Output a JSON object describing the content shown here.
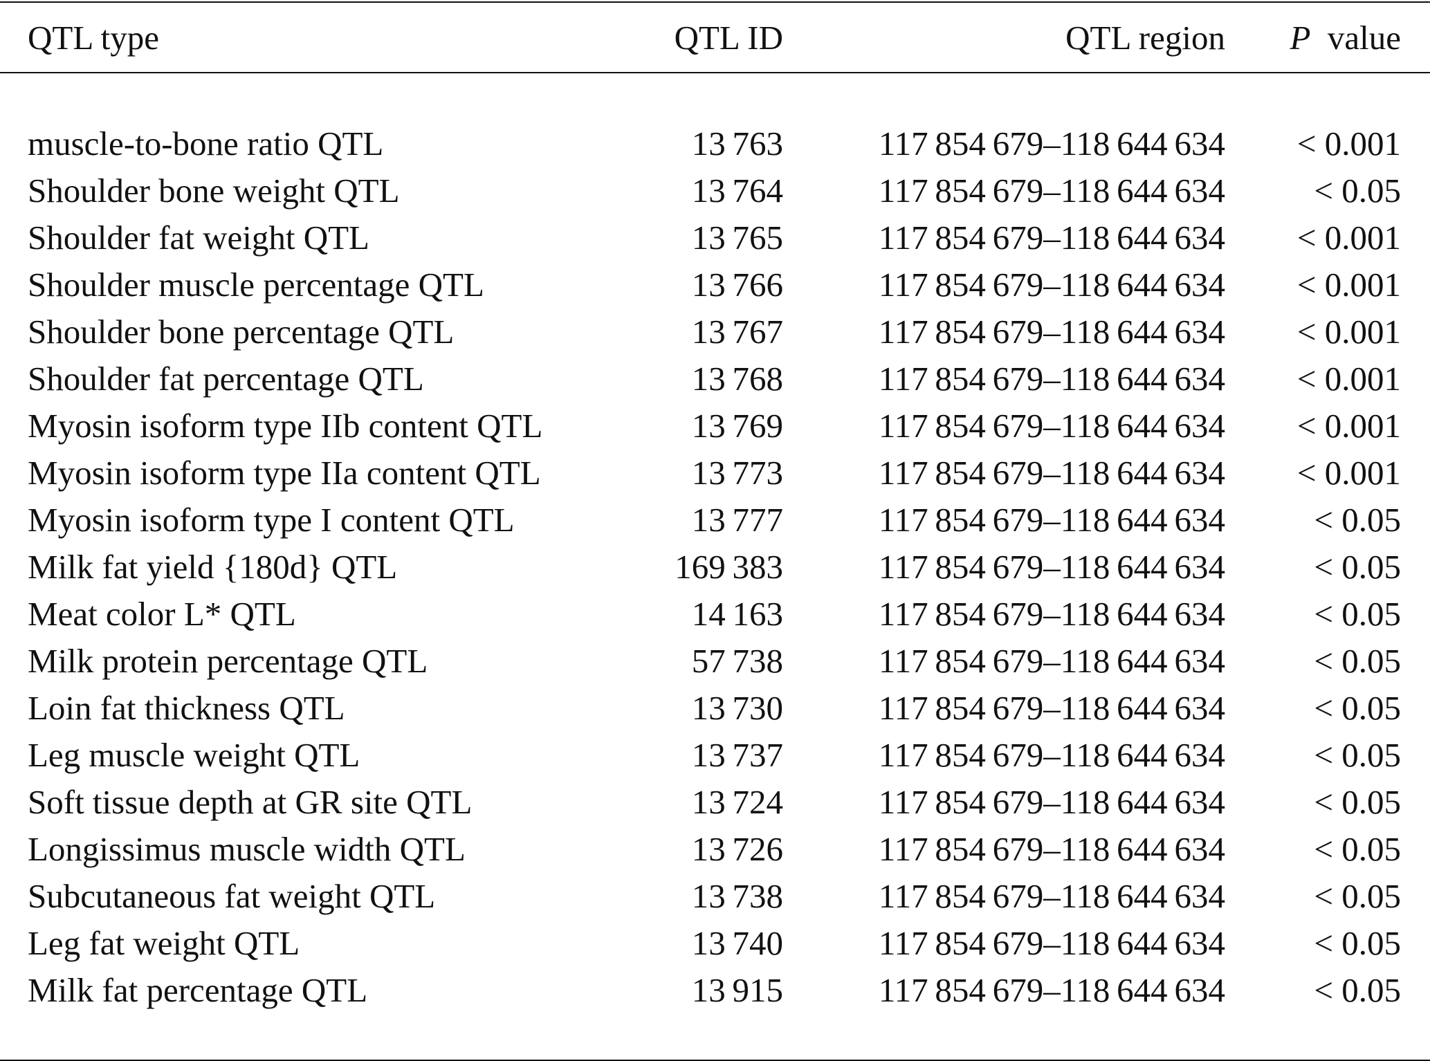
{
  "table": {
    "header": [
      "QTL type",
      "QTL ID",
      "QTL region",
      [
        "P",
        "value"
      ]
    ],
    "rows": [
      [
        "muscle-to-bone ratio QTL",
        "13 763",
        "117 854 679–118 644 634",
        "< 0.001"
      ],
      [
        "Shoulder bone weight QTL",
        "13 764",
        "117 854 679–118 644 634",
        "< 0.05"
      ],
      [
        "Shoulder fat weight QTL",
        "13 765",
        "117 854 679–118 644 634",
        "< 0.001"
      ],
      [
        "Shoulder muscle percentage QTL",
        "13 766",
        "117 854 679–118 644 634",
        "< 0.001"
      ],
      [
        "Shoulder bone percentage QTL",
        "13 767",
        "117 854 679–118 644 634",
        "< 0.001"
      ],
      [
        "Shoulder fat percentage QTL",
        "13 768",
        "117 854 679–118 644 634",
        "< 0.001"
      ],
      [
        "Myosin isoform type IIb content QTL",
        "13 769",
        "117 854 679–118 644 634",
        "< 0.001"
      ],
      [
        "Myosin isoform type IIa content QTL",
        "13 773",
        "117 854 679–118 644 634",
        "< 0.001"
      ],
      [
        "Myosin isoform type I content QTL",
        "13 777",
        "117 854 679–118 644 634",
        "< 0.05"
      ],
      [
        "Milk fat yield {180d} QTL",
        "169 383",
        "117 854 679–118 644 634",
        "< 0.05"
      ],
      [
        "Meat color L* QTL",
        "14 163",
        "117 854 679–118 644 634",
        "< 0.05"
      ],
      [
        "Milk protein percentage QTL",
        "57 738",
        "117 854 679–118 644 634",
        "< 0.05"
      ],
      [
        "Loin fat thickness QTL",
        "13 730",
        "117 854 679–118 644 634",
        "< 0.05"
      ],
      [
        "Leg muscle weight QTL",
        "13 737",
        "117 854 679–118 644 634",
        "< 0.05"
      ],
      [
        "Soft tissue depth at GR site QTL",
        "13 724",
        "117 854 679–118 644 634",
        "< 0.05"
      ],
      [
        "Longissimus muscle width QTL",
        "13 726",
        "117 854 679–118 644 634",
        "< 0.05"
      ],
      [
        "Subcutaneous fat weight QTL",
        "13 738",
        "117 854 679–118 644 634",
        "< 0.05"
      ],
      [
        "Leg fat weight QTL",
        "13 740",
        "117 854 679–118 644 634",
        "< 0.05"
      ],
      [
        "Milk fat percentage QTL",
        "13 915",
        "117 854 679–118 644 634",
        "< 0.05"
      ]
    ]
  }
}
